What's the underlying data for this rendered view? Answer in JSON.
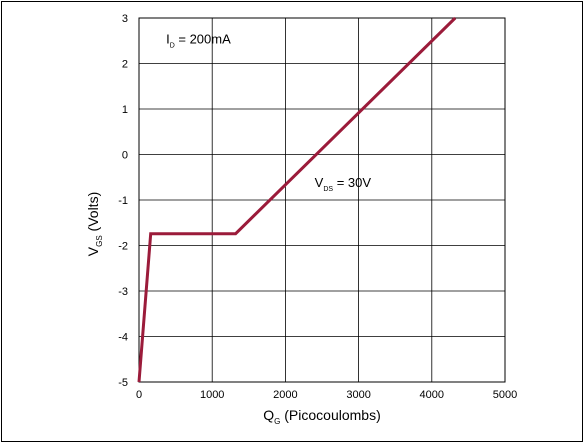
{
  "chart_data": {
    "type": "line",
    "x": [
      0,
      160,
      1320,
      4320
    ],
    "series": [
      {
        "values": [
          -5.0,
          -1.74,
          -1.74,
          3.0
        ],
        "color": "#9b1b3a"
      }
    ],
    "xlim": [
      0,
      5000
    ],
    "ylim": [
      -5,
      3
    ],
    "xticks": [
      0,
      1000,
      2000,
      3000,
      4000,
      5000
    ],
    "yticks": [
      3,
      2,
      1,
      0,
      -1,
      -2,
      -3,
      -4,
      -5
    ],
    "grid": true,
    "xlabel": {
      "main": "Q",
      "sub": "G",
      "rest": " (Picocoulombs)"
    },
    "ylabel": {
      "main": "V",
      "sub": "GS",
      "rest": " (Volts)"
    },
    "annotations": [
      {
        "main": "I",
        "sub": "D",
        "rest": " = 200mA",
        "x": 370,
        "y": 2.55
      },
      {
        "main": "V",
        "sub": "DS",
        "rest": " = 30V",
        "x": 2400,
        "y": -0.6
      }
    ]
  }
}
